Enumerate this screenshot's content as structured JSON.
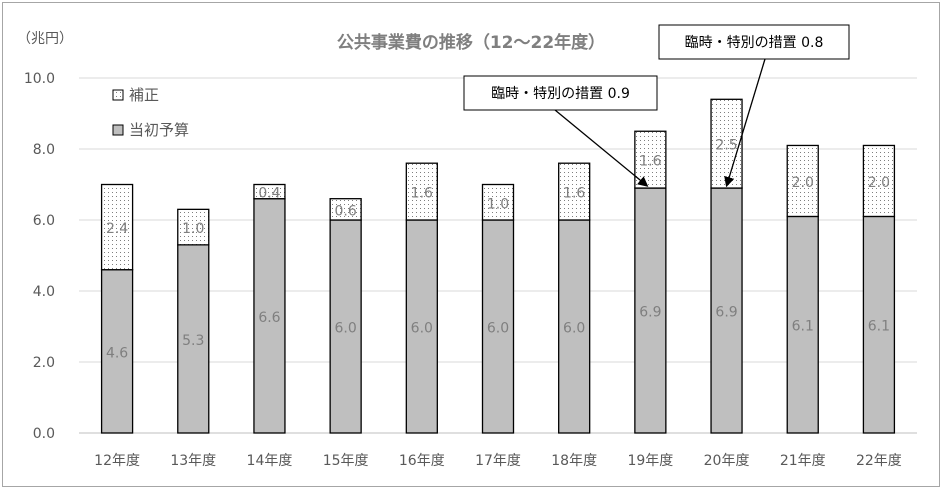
{
  "chart_data": {
    "type": "bar",
    "stacked": true,
    "title": "公共事業費の推移（12～22年度）",
    "unit_label": "（兆円）",
    "categories": [
      "12年度",
      "13年度",
      "14年度",
      "15年度",
      "16年度",
      "17年度",
      "18年度",
      "19年度",
      "20年度",
      "21年度",
      "22年度"
    ],
    "series": [
      {
        "name": "当初予算",
        "values": [
          4.6,
          5.3,
          6.6,
          6.0,
          6.0,
          6.0,
          6.0,
          6.9,
          6.9,
          6.1,
          6.1
        ],
        "color": "#bfbfbf",
        "pattern": "solid"
      },
      {
        "name": "補正",
        "values": [
          2.4,
          1.0,
          0.4,
          0.6,
          1.6,
          1.0,
          1.6,
          1.6,
          2.5,
          2.0,
          2.0
        ],
        "color": "#ffffff",
        "pattern": "dotted"
      }
    ],
    "ylim": [
      0,
      10
    ],
    "yticks": [
      "0.0",
      "2.0",
      "4.0",
      "6.0",
      "8.0",
      "10.0"
    ],
    "grid": true,
    "legend_position": "top-left",
    "annotations": [
      {
        "text": "臨時・特別の措置 0.9",
        "category": "19年度"
      },
      {
        "text": "臨時・特別の措置 0.8",
        "category": "20年度"
      }
    ]
  }
}
